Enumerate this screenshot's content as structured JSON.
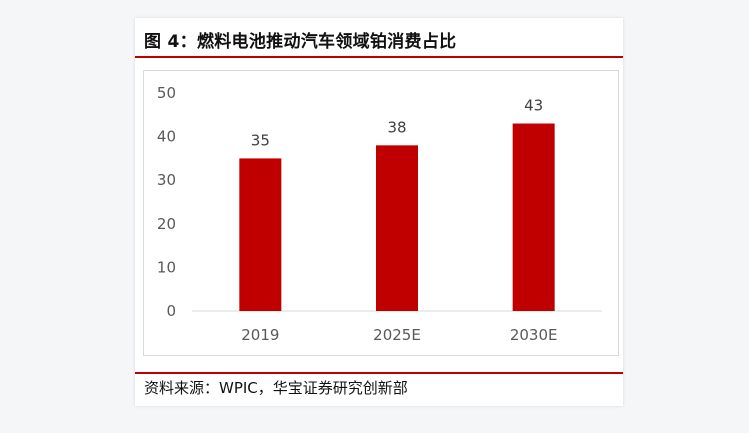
{
  "figure": {
    "title": "图 4：燃料电池推动汽车领域铂消费占比",
    "source": "资料来源：WPIC，华宝证券研究创新部"
  },
  "colors": {
    "accent": "#c00000",
    "bar": "#c00000",
    "axis_text": "#595959",
    "label_text": "#404040"
  },
  "chart_data": {
    "type": "bar",
    "title": "",
    "xlabel": "",
    "ylabel": "",
    "categories": [
      "2019",
      "2025E",
      "2030E"
    ],
    "values": [
      35,
      38,
      43
    ],
    "ylim": [
      0,
      50
    ],
    "yticks": [
      "0",
      "10",
      "20",
      "30",
      "40",
      "50"
    ],
    "data_labels": [
      "35",
      "38",
      "43"
    ],
    "grid": false,
    "legend": "none"
  }
}
